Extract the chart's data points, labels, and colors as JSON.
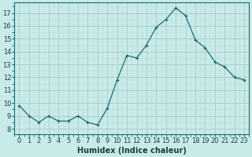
{
  "x": [
    0,
    1,
    2,
    3,
    4,
    5,
    6,
    7,
    8,
    9,
    10,
    11,
    12,
    13,
    14,
    15,
    16,
    17,
    18,
    19,
    20,
    21,
    22,
    23
  ],
  "y": [
    9.8,
    9.0,
    8.5,
    9.0,
    8.6,
    8.6,
    9.0,
    8.5,
    8.3,
    9.6,
    11.8,
    13.7,
    13.5,
    14.5,
    15.9,
    16.5,
    17.4,
    16.8,
    14.9,
    14.3,
    13.2,
    12.8,
    12.0,
    11.8
  ],
  "line_color": "#1a6e6a",
  "marker": "+",
  "bg_color": "#c8eae8",
  "grid_major_color": "#aacfcc",
  "grid_minor_color": "#bcdedd",
  "xlabel": "Humidex (Indice chaleur)",
  "xlabel_fontsize": 7,
  "ylabel_ticks": [
    8,
    9,
    10,
    11,
    12,
    13,
    14,
    15,
    16,
    17
  ],
  "ylim": [
    7.6,
    17.8
  ],
  "xlim": [
    -0.5,
    23.5
  ],
  "xtick_labels": [
    "0",
    "1",
    "2",
    "3",
    "4",
    "5",
    "6",
    "7",
    "8",
    "9",
    "10",
    "11",
    "12",
    "13",
    "14",
    "15",
    "16",
    "17",
    "18",
    "19",
    "20",
    "21",
    "22",
    "23"
  ],
  "tick_fontsize": 6,
  "spine_color": "#1a6e6a",
  "text_color": "#1a4040"
}
